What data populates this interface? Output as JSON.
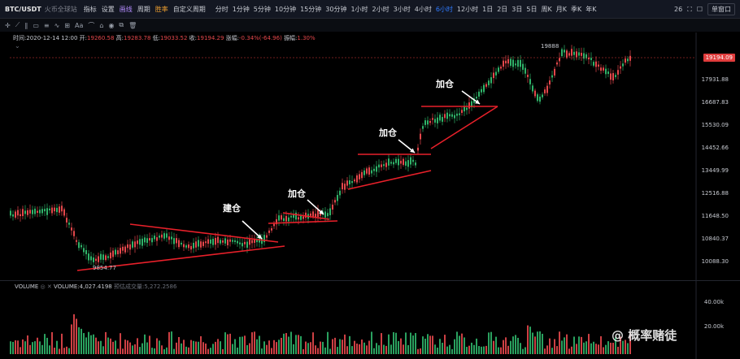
{
  "topbar": {
    "symbol": "BTC/USDT",
    "exchange": "火币全球站",
    "tools": [
      "指标",
      "设置",
      "画线",
      "周期",
      "胜率"
    ],
    "custom_period": "自定义周期",
    "periods": [
      "分时",
      "1分钟",
      "5分钟",
      "10分钟",
      "15分钟",
      "30分钟",
      "1小时",
      "2小时",
      "3小时",
      "4小时",
      "6小时",
      "12小时",
      "1日",
      "2日",
      "3日",
      "5日",
      "周K",
      "月K",
      "季K",
      "年K"
    ],
    "active_period": "6小时",
    "right_num": "26",
    "layout_label": "单窗口"
  },
  "info": {
    "time": "时间:2020-12-14 12:00",
    "open_label": "开:",
    "open": "19260.58",
    "high_label": "高:",
    "high": "19283.78",
    "low_label": "低:",
    "low": "19033.52",
    "close_label": "收:",
    "close": "19194.29",
    "change_label": "涨幅:",
    "change": "-0.34%(-64.96)",
    "amp_label": "振幅:",
    "amp": "1.30%"
  },
  "price_axis": [
    "17931.88",
    "16687.83",
    "15530.09",
    "14452.66",
    "13449.99",
    "12516.88",
    "11648.50",
    "10840.37",
    "10088.30"
  ],
  "current_price": "19194.09",
  "peak_label": "19888",
  "low_label": "9854.77",
  "annotations": {
    "build": "建仓",
    "add1": "加仓",
    "add2": "加仓",
    "add3": "加仓"
  },
  "volume": {
    "title": "VOLUME",
    "value_label": "VOLUME:4,027.4198",
    "extra_label": "预估成交量:5,272.2586",
    "axis_top": "40.00k",
    "axis_mid": "20.00k"
  },
  "watermark": "@ 概率赌徒",
  "colors": {
    "up": "#2fb369",
    "down": "#e3474b",
    "line": "#e8202a"
  }
}
